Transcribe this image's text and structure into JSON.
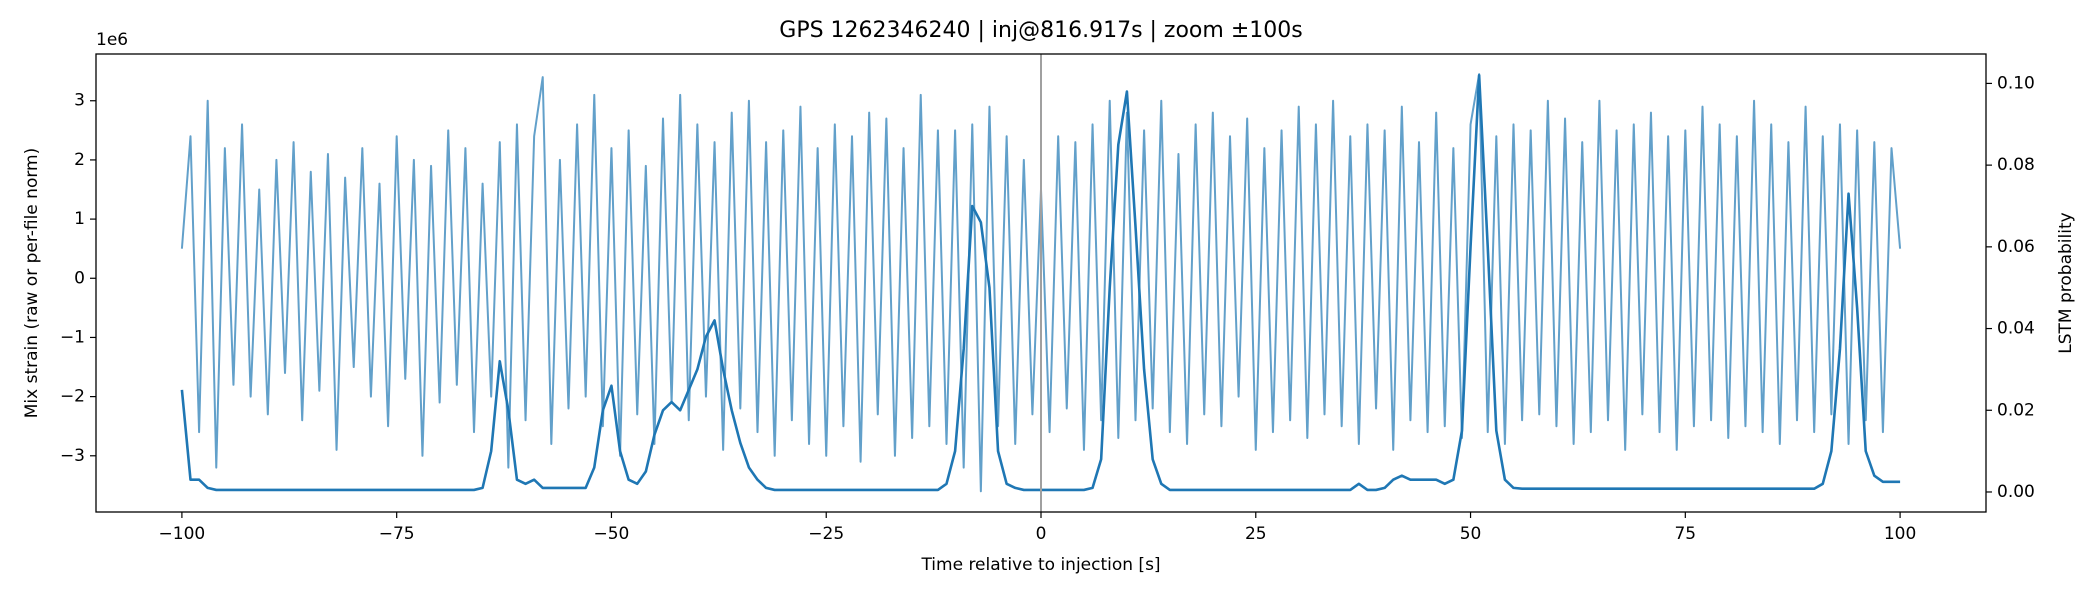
{
  "chart_data": {
    "type": "line",
    "title": "GPS 1262346240 | inj@816.917s | zoom ±100s",
    "xlabel": "Time relative to injection [s]",
    "ylabel": "Mix strain (raw or per-file norm)",
    "y2label": "LSTM probability",
    "y_offset_label": "1e6",
    "vline_x": 0,
    "vline_color": "#a0a0a0",
    "xlim": [
      -110,
      110
    ],
    "ylim": [
      -3.95,
      3.79
    ],
    "y2lim": [
      -0.0049,
      0.1072
    ],
    "xticks": [
      {
        "value": -100,
        "label": "−100"
      },
      {
        "value": -75,
        "label": "−75"
      },
      {
        "value": -50,
        "label": "−50"
      },
      {
        "value": -25,
        "label": "−25"
      },
      0,
      25,
      50,
      75,
      100
    ],
    "yticks": [
      {
        "value": -3,
        "label": "−3"
      },
      {
        "value": -2,
        "label": "−2"
      },
      {
        "value": -1,
        "label": "−1"
      },
      0,
      1,
      2,
      3
    ],
    "y2ticks": [
      {
        "value": 0,
        "label": "0.00"
      },
      {
        "value": 0.02,
        "label": "0.02"
      },
      {
        "value": 0.04,
        "label": "0.04"
      },
      {
        "value": 0.06,
        "label": "0.06"
      },
      {
        "value": 0.08,
        "label": "0.08"
      },
      {
        "value": 0.1,
        "label": "0.10"
      }
    ],
    "x": [
      -100,
      -99,
      -98,
      -97,
      -96,
      -95,
      -94,
      -93,
      -92,
      -91,
      -90,
      -89,
      -88,
      -87,
      -86,
      -85,
      -84,
      -83,
      -82,
      -81,
      -80,
      -79,
      -78,
      -77,
      -76,
      -75,
      -74,
      -73,
      -72,
      -71,
      -70,
      -69,
      -68,
      -67,
      -66,
      -65,
      -64,
      -63,
      -62,
      -61,
      -60,
      -59,
      -58,
      -57,
      -56,
      -55,
      -54,
      -53,
      -52,
      -51,
      -50,
      -49,
      -48,
      -47,
      -46,
      -45,
      -44,
      -43,
      -42,
      -41,
      -40,
      -39,
      -38,
      -37,
      -36,
      -35,
      -34,
      -33,
      -32,
      -31,
      -30,
      -29,
      -28,
      -27,
      -26,
      -25,
      -24,
      -23,
      -22,
      -21,
      -20,
      -19,
      -18,
      -17,
      -16,
      -15,
      -14,
      -13,
      -12,
      -11,
      -10,
      -9,
      -8,
      -7,
      -6,
      -5,
      -4,
      -3,
      -2,
      -1,
      0,
      1,
      2,
      3,
      4,
      5,
      6,
      7,
      8,
      9,
      10,
      11,
      12,
      13,
      14,
      15,
      16,
      17,
      18,
      19,
      20,
      21,
      22,
      23,
      24,
      25,
      26,
      27,
      28,
      29,
      30,
      31,
      32,
      33,
      34,
      35,
      36,
      37,
      38,
      39,
      40,
      41,
      42,
      43,
      44,
      45,
      46,
      47,
      48,
      49,
      50,
      51,
      52,
      53,
      54,
      55,
      56,
      57,
      58,
      59,
      60,
      61,
      62,
      63,
      64,
      65,
      66,
      67,
      68,
      69,
      70,
      71,
      72,
      73,
      74,
      75,
      76,
      77,
      78,
      79,
      80,
      81,
      82,
      83,
      84,
      85,
      86,
      87,
      88,
      89,
      90,
      91,
      92,
      93,
      94,
      95,
      96,
      97,
      98,
      99,
      100
    ],
    "series": [
      {
        "color": "#1f77b4",
        "opacity": 0.7,
        "axis": "y",
        "values": [
          0.5,
          2.4,
          -2.6,
          3.0,
          -3.2,
          2.2,
          -1.8,
          2.6,
          -2.0,
          1.5,
          -2.3,
          2.0,
          -1.6,
          2.3,
          -2.4,
          1.8,
          -1.9,
          2.1,
          -2.9,
          1.7,
          -1.5,
          2.2,
          -2.0,
          1.6,
          -2.5,
          2.4,
          -1.7,
          2.0,
          -3.0,
          1.9,
          -2.1,
          2.5,
          -1.8,
          2.2,
          -2.6,
          1.6,
          -2.0,
          2.3,
          -3.2,
          2.6,
          -2.4,
          2.4,
          3.4,
          -2.8,
          2.0,
          -2.2,
          2.6,
          -2.0,
          3.1,
          -2.5,
          2.2,
          -3.0,
          2.5,
          -2.3,
          1.9,
          -2.8,
          2.7,
          -2.1,
          3.1,
          -2.4,
          2.6,
          -2.0,
          2.3,
          -2.9,
          2.8,
          -2.2,
          3.0,
          -2.6,
          2.3,
          -3.0,
          2.5,
          -2.4,
          2.9,
          -2.8,
          2.2,
          -3.0,
          2.6,
          -2.5,
          2.4,
          -3.1,
          2.8,
          -2.3,
          2.7,
          -3.0,
          2.2,
          -2.7,
          3.1,
          -2.5,
          2.5,
          -2.8,
          2.5,
          -3.2,
          2.6,
          -3.6,
          2.9,
          -2.5,
          2.4,
          -2.8,
          2.0,
          -2.3,
          1.5,
          -2.6,
          2.4,
          -2.2,
          2.3,
          -2.9,
          2.6,
          -2.4,
          3.0,
          -2.7,
          2.8,
          -2.4,
          2.5,
          -2.2,
          3.0,
          -2.6,
          2.1,
          -2.8,
          2.6,
          -2.3,
          2.8,
          -2.5,
          2.4,
          -2.0,
          2.7,
          -2.9,
          2.2,
          -2.6,
          2.5,
          -2.4,
          2.9,
          -2.7,
          2.6,
          -2.3,
          3.0,
          -2.5,
          2.4,
          -2.8,
          2.6,
          -2.2,
          2.5,
          -2.9,
          2.9,
          -2.4,
          2.3,
          -2.6,
          2.8,
          -2.5,
          2.2,
          -2.7,
          2.6,
          3.45,
          -2.6,
          2.4,
          -2.8,
          2.6,
          -2.4,
          2.5,
          -2.3,
          3.0,
          -2.5,
          2.7,
          -2.8,
          2.3,
          -2.6,
          3.0,
          -2.4,
          2.5,
          -2.9,
          2.6,
          -2.3,
          2.8,
          -2.6,
          2.4,
          -2.9,
          2.5,
          -2.5,
          2.9,
          -2.4,
          2.6,
          -2.7,
          2.4,
          -2.5,
          3.0,
          -2.6,
          2.6,
          -2.8,
          2.3,
          -2.4,
          2.9,
          -2.6,
          2.4,
          -2.3,
          2.6,
          -2.8,
          2.5,
          -2.4,
          2.3,
          -2.6,
          2.2,
          0.5
        ]
      },
      {
        "color": "#1f77b4",
        "opacity": 1,
        "axis": "y2",
        "values": [
          0.025,
          0.003,
          0.003,
          0.001,
          0.0005,
          0.0005,
          0.0005,
          0.0005,
          0.0005,
          0.0005,
          0.0005,
          0.0005,
          0.0005,
          0.0005,
          0.0005,
          0.0005,
          0.0005,
          0.0005,
          0.0005,
          0.0005,
          0.0005,
          0.0005,
          0.0005,
          0.0005,
          0.0005,
          0.0005,
          0.0005,
          0.0005,
          0.0005,
          0.0005,
          0.0005,
          0.0005,
          0.0005,
          0.0005,
          0.0005,
          0.001,
          0.01,
          0.032,
          0.02,
          0.003,
          0.002,
          0.003,
          0.001,
          0.001,
          0.001,
          0.001,
          0.001,
          0.001,
          0.006,
          0.02,
          0.026,
          0.01,
          0.003,
          0.002,
          0.005,
          0.014,
          0.02,
          0.022,
          0.02,
          0.025,
          0.03,
          0.038,
          0.042,
          0.03,
          0.02,
          0.012,
          0.006,
          0.003,
          0.001,
          0.0005,
          0.0005,
          0.0005,
          0.0005,
          0.0005,
          0.0005,
          0.0005,
          0.0005,
          0.0005,
          0.0005,
          0.0005,
          0.0005,
          0.0005,
          0.0005,
          0.0005,
          0.0005,
          0.0005,
          0.0005,
          0.0005,
          0.0005,
          0.002,
          0.01,
          0.035,
          0.07,
          0.066,
          0.05,
          0.01,
          0.002,
          0.001,
          0.0005,
          0.0005,
          0.0005,
          0.0005,
          0.0005,
          0.0005,
          0.0005,
          0.0005,
          0.001,
          0.008,
          0.05,
          0.085,
          0.098,
          0.065,
          0.03,
          0.008,
          0.002,
          0.0005,
          0.0005,
          0.0005,
          0.0005,
          0.0005,
          0.0005,
          0.0005,
          0.0005,
          0.0005,
          0.0005,
          0.0005,
          0.0005,
          0.0005,
          0.0005,
          0.0005,
          0.0005,
          0.0005,
          0.0005,
          0.0005,
          0.0005,
          0.0005,
          0.0005,
          0.002,
          0.0005,
          0.0005,
          0.001,
          0.003,
          0.004,
          0.003,
          0.003,
          0.003,
          0.003,
          0.002,
          0.003,
          0.015,
          0.06,
          0.102,
          0.06,
          0.015,
          0.003,
          0.001,
          0.0008,
          0.0008,
          0.0008,
          0.0008,
          0.0008,
          0.0008,
          0.0008,
          0.0008,
          0.0008,
          0.0008,
          0.0008,
          0.0008,
          0.0008,
          0.0008,
          0.0008,
          0.0008,
          0.0008,
          0.0008,
          0.0008,
          0.0008,
          0.0008,
          0.0008,
          0.0008,
          0.0008,
          0.0008,
          0.0008,
          0.0008,
          0.0008,
          0.0008,
          0.0008,
          0.0008,
          0.0008,
          0.0008,
          0.0008,
          0.0008,
          0.002,
          0.01,
          0.035,
          0.073,
          0.045,
          0.01,
          0.004,
          0.0025,
          0.0025,
          0.0025
        ]
      }
    ]
  }
}
